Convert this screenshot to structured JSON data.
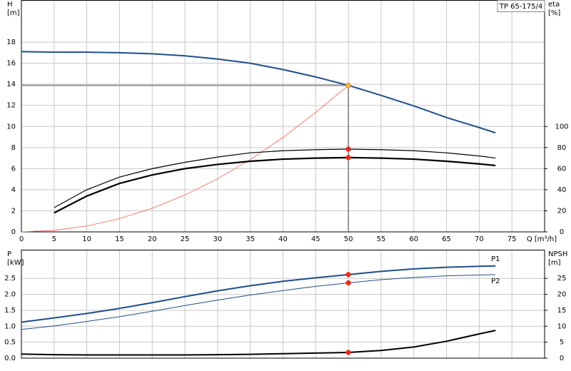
{
  "chart_data": [
    {
      "type": "line",
      "title": "TP 65-175/4",
      "y_label": "H",
      "y_unit": "[m]",
      "y2_label": "eta",
      "y2_unit": "[%]",
      "x_label": "Q [m³/h]",
      "x": [
        0,
        5,
        10,
        15,
        20,
        25,
        30,
        35,
        40,
        45,
        50,
        55,
        60,
        65,
        70,
        72.5
      ],
      "xlim": [
        0,
        80
      ],
      "xticks": [
        0,
        5,
        10,
        15,
        20,
        25,
        30,
        35,
        40,
        45,
        50,
        55,
        60,
        65,
        70,
        75
      ],
      "ylim": [
        0,
        22
      ],
      "yticks": [
        0,
        2,
        4,
        6,
        8,
        10,
        12,
        14,
        16,
        18
      ],
      "y2lim": [
        0,
        220
      ],
      "y2ticks": [
        0,
        20,
        40,
        60,
        80,
        100
      ],
      "grid": true,
      "series": [
        {
          "color": "#1f4e8c",
          "width": 2,
          "highlight_index": 10,
          "highlight_color": "#f5b335",
          "values": [
            17.1,
            17.05,
            17.05,
            17.0,
            16.9,
            16.7,
            16.4,
            16.0,
            15.4,
            14.7,
            13.9,
            12.95,
            11.95,
            10.85,
            9.9,
            9.4
          ]
        },
        {
          "color": "#ff5a4a",
          "width": 0.8,
          "values": [
            0,
            0.14,
            0.56,
            1.26,
            2.24,
            3.5,
            5.04,
            6.86,
            8.96,
            11.34,
            13.9,
            null,
            null,
            null,
            null,
            null
          ]
        },
        {
          "color": "#000000",
          "width": 1.2,
          "axis": "y2",
          "highlight_index": 10,
          "highlight_color": "#ff2020",
          "values": [
            null,
            23,
            40,
            52,
            60,
            66,
            71,
            75,
            77,
            78,
            78.5,
            78,
            77,
            75,
            72,
            70
          ]
        },
        {
          "color": "#000000",
          "width": 2.2,
          "axis": "y2",
          "highlight_index": 10,
          "highlight_color": "#ff2020",
          "values": [
            null,
            18,
            34,
            46,
            54,
            60,
            64,
            67,
            69,
            70,
            70.5,
            70,
            69,
            67,
            64.5,
            63
          ]
        }
      ]
    },
    {
      "type": "line",
      "y_label": "P",
      "y_unit": "[kW]",
      "y2_label": "NPSH",
      "y2_unit": "[m]",
      "x": [
        0,
        5,
        10,
        15,
        20,
        25,
        30,
        35,
        40,
        45,
        50,
        55,
        60,
        65,
        70,
        72.5
      ],
      "xlim": [
        0,
        80
      ],
      "ylim": [
        0,
        3.4
      ],
      "yticks": [
        {
          "value": 0,
          "label": "0.0"
        },
        0.5,
        {
          "value": 1,
          "label": "1.0"
        },
        1.5,
        {
          "value": 2,
          "label": "2.0"
        },
        2.5
      ],
      "y2lim": [
        0,
        34
      ],
      "y2ticks": [
        0,
        5,
        10,
        15,
        20,
        25
      ],
      "grid": true,
      "series": [
        {
          "name": "P1",
          "color": "#1f4e8c",
          "width": 2,
          "highlight_index": 10,
          "highlight_color": "#ff2020",
          "values": [
            1.13,
            1.26,
            1.4,
            1.56,
            1.74,
            1.93,
            2.11,
            2.27,
            2.41,
            2.52,
            2.62,
            2.72,
            2.8,
            2.85,
            2.88,
            2.89
          ]
        },
        {
          "name": "P2",
          "color": "#1f4e8c",
          "width": 1,
          "highlight_index": 10,
          "highlight_color": "#ff2020",
          "values": [
            0.9,
            1.01,
            1.15,
            1.3,
            1.47,
            1.65,
            1.82,
            1.98,
            2.12,
            2.25,
            2.36,
            2.46,
            2.53,
            2.58,
            2.61,
            2.62
          ]
        },
        {
          "color": "#000000",
          "width": 2,
          "axis": "y2",
          "highlight_index": 10,
          "highlight_color": "#ff2020",
          "values": [
            1.3,
            1.1,
            1.0,
            1.0,
            1.0,
            1.0,
            1.1,
            1.2,
            1.4,
            1.6,
            1.8,
            2.4,
            3.5,
            5.3,
            7.6,
            8.7
          ]
        }
      ]
    }
  ]
}
